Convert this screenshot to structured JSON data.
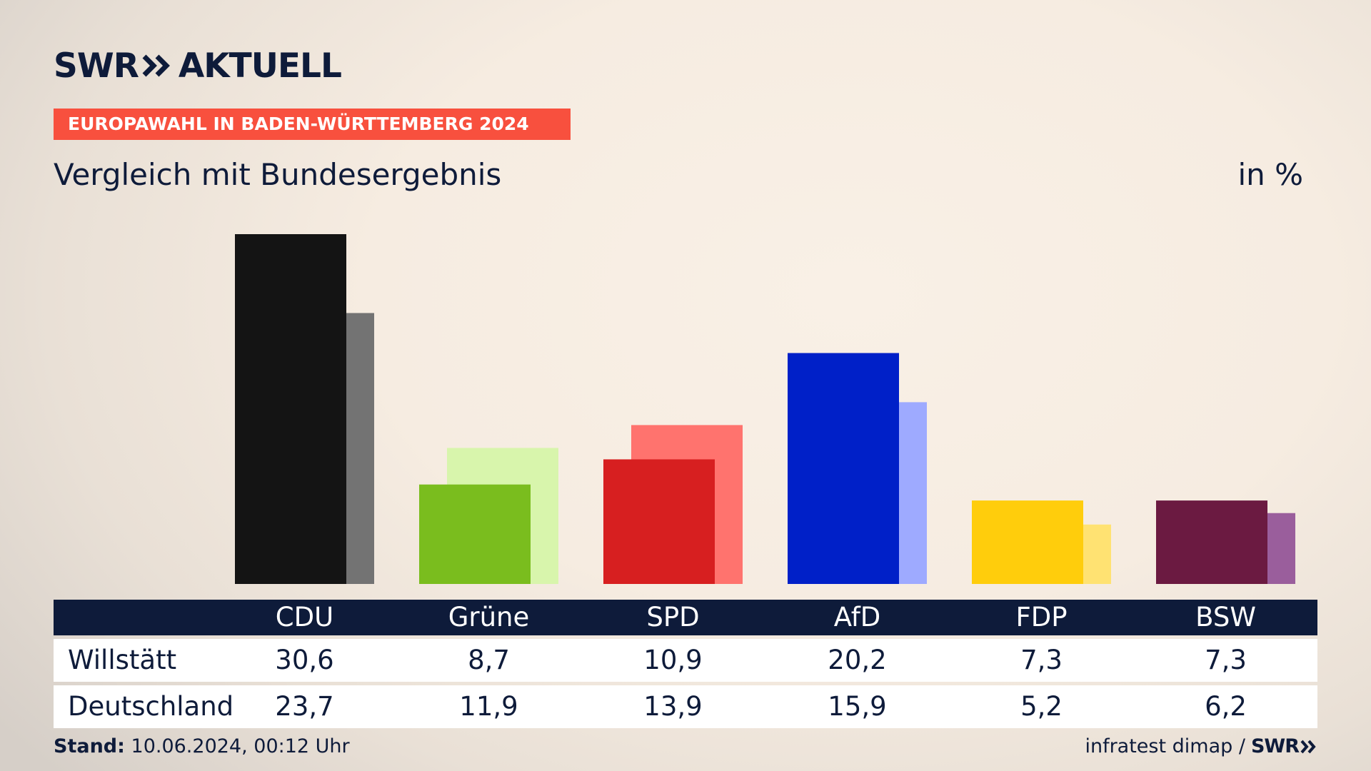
{
  "header": {
    "logo_main": "SWR",
    "logo_sub": "AKTUELL",
    "banner": "EUROPAWAHL IN BADEN-WÜRTTEMBERG 2024",
    "subtitle": "Vergleich mit Bundesergebnis",
    "unit": "in %"
  },
  "chart_data": {
    "type": "bar",
    "title": "Vergleich mit Bundesergebnis",
    "unit": "in %",
    "categories": [
      "CDU",
      "Grüne",
      "SPD",
      "AfD",
      "FDP",
      "BSW"
    ],
    "series": [
      {
        "name": "Willstätt",
        "values": [
          30.6,
          8.7,
          10.9,
          20.2,
          7.3,
          7.3
        ]
      },
      {
        "name": "Deutschland",
        "values": [
          23.7,
          11.9,
          13.9,
          15.9,
          5.2,
          6.2
        ]
      }
    ],
    "display": {
      "Willstätt": [
        "30,6",
        "8,7",
        "10,9",
        "20,2",
        "7,3",
        "7,3"
      ],
      "Deutschland": [
        "23,7",
        "11,9",
        "13,9",
        "15,9",
        "5,2",
        "6,2"
      ]
    },
    "colors": {
      "primary": [
        "#141414",
        "#7abd1e",
        "#d71f20",
        "#0020c8",
        "#ffcd0c",
        "#6b1a41"
      ],
      "secondary": [
        "#737373",
        "#d8f5ac",
        "#ff736e",
        "#9eaaff",
        "#ffe272",
        "#9a5e9c"
      ]
    },
    "ylim": [
      0,
      31
    ]
  },
  "table": {
    "rows": [
      {
        "label": "Willstätt"
      },
      {
        "label": "Deutschland"
      }
    ]
  },
  "footer": {
    "stand_label": "Stand:",
    "stand_value": "10.06.2024, 00:12 Uhr",
    "source": "infratest dimap /",
    "source_logo": "SWR"
  }
}
